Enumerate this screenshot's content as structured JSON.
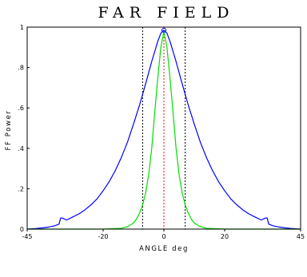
{
  "chart_data": {
    "type": "line",
    "title": "FAR FIELD",
    "xlabel": "ANGLE deg",
    "ylabel": "FF Power",
    "xlim": [
      -45,
      45
    ],
    "ylim": [
      0,
      1
    ],
    "x_ticks": [
      {
        "value": -45,
        "label": "-45"
      },
      {
        "value": -20,
        "label": "-20"
      },
      {
        "value": 0,
        "label": "0"
      },
      {
        "value": 20,
        "label": "20"
      },
      {
        "value": 45,
        "label": "45"
      }
    ],
    "y_ticks": [
      {
        "value": 0,
        "label": "0"
      },
      {
        "value": 0.2,
        "label": ".2"
      },
      {
        "value": 0.4,
        "label": ".4"
      },
      {
        "value": 0.6,
        "label": ".6"
      },
      {
        "value": 0.8,
        "label": ".8"
      },
      {
        "value": 1,
        "label": "1"
      }
    ],
    "grid": false,
    "series": [
      {
        "color": "#0000ff",
        "x": [
          -45,
          -42,
          -40,
          -38,
          -36,
          -34.5,
          -34,
          -33.5,
          -32,
          -30,
          -28,
          -26,
          -24,
          -22,
          -20,
          -18,
          -16,
          -14,
          -12,
          -10,
          -8,
          -6,
          -4,
          -2,
          -1,
          0,
          1,
          2,
          4,
          6,
          8,
          10,
          12,
          14,
          16,
          18,
          20,
          22,
          24,
          26,
          28,
          30,
          32,
          33.5,
          34,
          34.5,
          36,
          38,
          40,
          42,
          45
        ],
        "y": [
          0.0,
          0.003,
          0.006,
          0.01,
          0.016,
          0.025,
          0.055,
          0.055,
          0.045,
          0.06,
          0.075,
          0.095,
          0.12,
          0.15,
          0.19,
          0.235,
          0.29,
          0.355,
          0.43,
          0.52,
          0.615,
          0.72,
          0.83,
          0.93,
          0.97,
          0.985,
          0.97,
          0.93,
          0.83,
          0.72,
          0.615,
          0.52,
          0.43,
          0.355,
          0.29,
          0.235,
          0.19,
          0.15,
          0.12,
          0.095,
          0.075,
          0.06,
          0.045,
          0.055,
          0.055,
          0.025,
          0.016,
          0.01,
          0.006,
          0.003,
          0.0
        ]
      },
      {
        "color": "#00dd00",
        "x": [
          -45,
          -20,
          -14,
          -12,
          -10,
          -9,
          -8,
          -7,
          -6,
          -5,
          -4,
          -3,
          -2,
          -1,
          0,
          1,
          2,
          3,
          4,
          5,
          6,
          7,
          8,
          9,
          10,
          12,
          14,
          20,
          45
        ],
        "y": [
          0.0,
          0.0,
          0.004,
          0.012,
          0.03,
          0.05,
          0.08,
          0.12,
          0.18,
          0.27,
          0.4,
          0.58,
          0.75,
          0.9,
          0.98,
          0.9,
          0.75,
          0.58,
          0.4,
          0.27,
          0.18,
          0.12,
          0.08,
          0.05,
          0.03,
          0.012,
          0.004,
          0.0,
          0.0
        ]
      }
    ],
    "reference_lines": [
      {
        "x": -7,
        "color": "#000000",
        "style": "dotted"
      },
      {
        "x": 0,
        "color": "#ff0000",
        "style": "dotted"
      },
      {
        "x": 7,
        "color": "#000000",
        "style": "dotted"
      }
    ],
    "peak_marker": {
      "x": 0,
      "y": 0.985,
      "color": "#0000ff"
    }
  }
}
